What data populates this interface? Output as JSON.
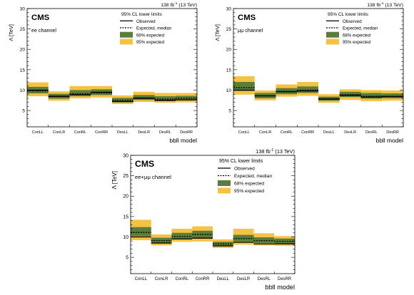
{
  "figure": {
    "experiment_label": "CMS",
    "lumi_label_main": "138 fb",
    "lumi_label_exp": "-1",
    "lumi_label_energy": " (13 TeV)"
  },
  "chart_data": [
    {
      "type": "bar",
      "channel": "ee channel",
      "categories": [
        "ConLL",
        "ConLR",
        "ConRL",
        "ConRR",
        "DesLL",
        "DesLR",
        "DesRL",
        "DesRR"
      ],
      "xlabel": "bbll model",
      "ylabel": "Λ [TeV]",
      "ylim": [
        1,
        30
      ],
      "yticks": [
        5,
        10,
        15,
        20,
        25,
        30
      ],
      "legend_title": "95% CL lower limits",
      "legend": [
        "Observed",
        "Expected, median",
        "68% expected",
        "95% expected"
      ],
      "legend_placement": "top-right",
      "series": [
        {
          "name": "Observed",
          "values": [
            10.0,
            8.5,
            8.9,
            9.5,
            7.2,
            8.0,
            7.5,
            7.6
          ]
        },
        {
          "name": "Expected, median",
          "values": [
            9.8,
            8.4,
            9.1,
            9.3,
            7.5,
            8.1,
            7.8,
            8.0
          ]
        },
        {
          "name": "68% expected",
          "low": [
            9.2,
            7.9,
            8.5,
            8.8,
            7.0,
            7.6,
            7.3,
            7.5
          ],
          "high": [
            10.8,
            9.1,
            10.0,
            10.2,
            8.1,
            8.8,
            8.5,
            8.6
          ]
        },
        {
          "name": "95% expected",
          "low": [
            8.5,
            7.4,
            8.0,
            8.2,
            6.6,
            7.1,
            6.9,
            7.0
          ],
          "high": [
            11.9,
            9.7,
            11.0,
            11.0,
            8.7,
            9.6,
            9.3,
            9.3
          ]
        }
      ],
      "colors": {
        "band68": "#5a7d3a",
        "band95": "#f7c143",
        "observed": "#000000",
        "expected": "#000000"
      }
    },
    {
      "type": "bar",
      "channel": "μμ channel",
      "categories": [
        "ConLL",
        "ConLR",
        "ConRL",
        "ConRR",
        "DesLL",
        "DesLR",
        "DesRL",
        "DesRR"
      ],
      "xlabel": "bbll model",
      "ylabel": "Λ [TeV]",
      "ylim": [
        1,
        30
      ],
      "yticks": [
        5,
        10,
        15,
        20,
        25,
        30
      ],
      "legend_title": "95% CL lower limits",
      "legend": [
        "Observed",
        "Expected, median",
        "68% expected",
        "95% expected"
      ],
      "legend_placement": "top-right",
      "series": [
        {
          "name": "Observed",
          "values": [
            10.0,
            8.6,
            9.6,
            9.8,
            7.8,
            8.7,
            8.3,
            8.4
          ]
        },
        {
          "name": "Expected, median",
          "values": [
            10.6,
            8.6,
            9.7,
            10.0,
            7.9,
            8.9,
            8.5,
            8.5
          ]
        },
        {
          "name": "68% expected",
          "low": [
            9.8,
            8.0,
            9.0,
            9.3,
            7.4,
            8.3,
            7.9,
            8.0
          ],
          "high": [
            12.0,
            9.3,
            10.5,
            10.9,
            8.4,
            9.6,
            9.3,
            9.2
          ]
        },
        {
          "name": "95% expected",
          "low": [
            8.9,
            7.5,
            8.4,
            8.6,
            6.9,
            7.6,
            7.3,
            7.4
          ],
          "high": [
            13.4,
            9.9,
            11.4,
            12.0,
            9.0,
            10.2,
            10.0,
            9.9
          ]
        }
      ],
      "colors": {
        "band68": "#5a7d3a",
        "band95": "#f7c143",
        "observed": "#000000",
        "expected": "#000000"
      }
    },
    {
      "type": "bar",
      "channel": "ee+μμ channel",
      "categories": [
        "ConLL",
        "ConLR",
        "ConRL",
        "ConRR",
        "DesLL",
        "DesLR",
        "DesRL",
        "DesRR"
      ],
      "xlabel": "bbll model",
      "ylabel": "Λ [TeV]",
      "ylim": [
        1,
        30
      ],
      "yticks": [
        5,
        10,
        15,
        20,
        25,
        30
      ],
      "legend_title": "95% CL lower limits",
      "legend": [
        "Observed",
        "Expected, median",
        "68% expected",
        "95% expected"
      ],
      "legend_placement": "top-right",
      "series": [
        {
          "name": "Observed",
          "values": [
            10.0,
            8.5,
            9.5,
            9.7,
            7.8,
            8.7,
            8.3,
            8.3
          ]
        },
        {
          "name": "Expected, median",
          "values": [
            11.1,
            9.1,
            10.1,
            10.6,
            8.3,
            9.6,
            9.1,
            8.9
          ]
        },
        {
          "name": "68% expected",
          "low": [
            10.2,
            8.5,
            9.5,
            9.8,
            7.8,
            8.9,
            8.5,
            8.3
          ],
          "high": [
            12.4,
            9.8,
            11.0,
            11.5,
            8.8,
            10.5,
            9.9,
            9.6
          ]
        },
        {
          "name": "95% expected",
          "low": [
            9.2,
            7.9,
            8.8,
            8.9,
            7.3,
            8.1,
            7.9,
            7.8
          ],
          "high": [
            14.2,
            10.6,
            12.0,
            12.6,
            9.4,
            12.0,
            10.9,
            10.2
          ]
        }
      ],
      "colors": {
        "band68": "#5a7d3a",
        "band95": "#f7c143",
        "observed": "#000000",
        "expected": "#000000"
      }
    }
  ]
}
